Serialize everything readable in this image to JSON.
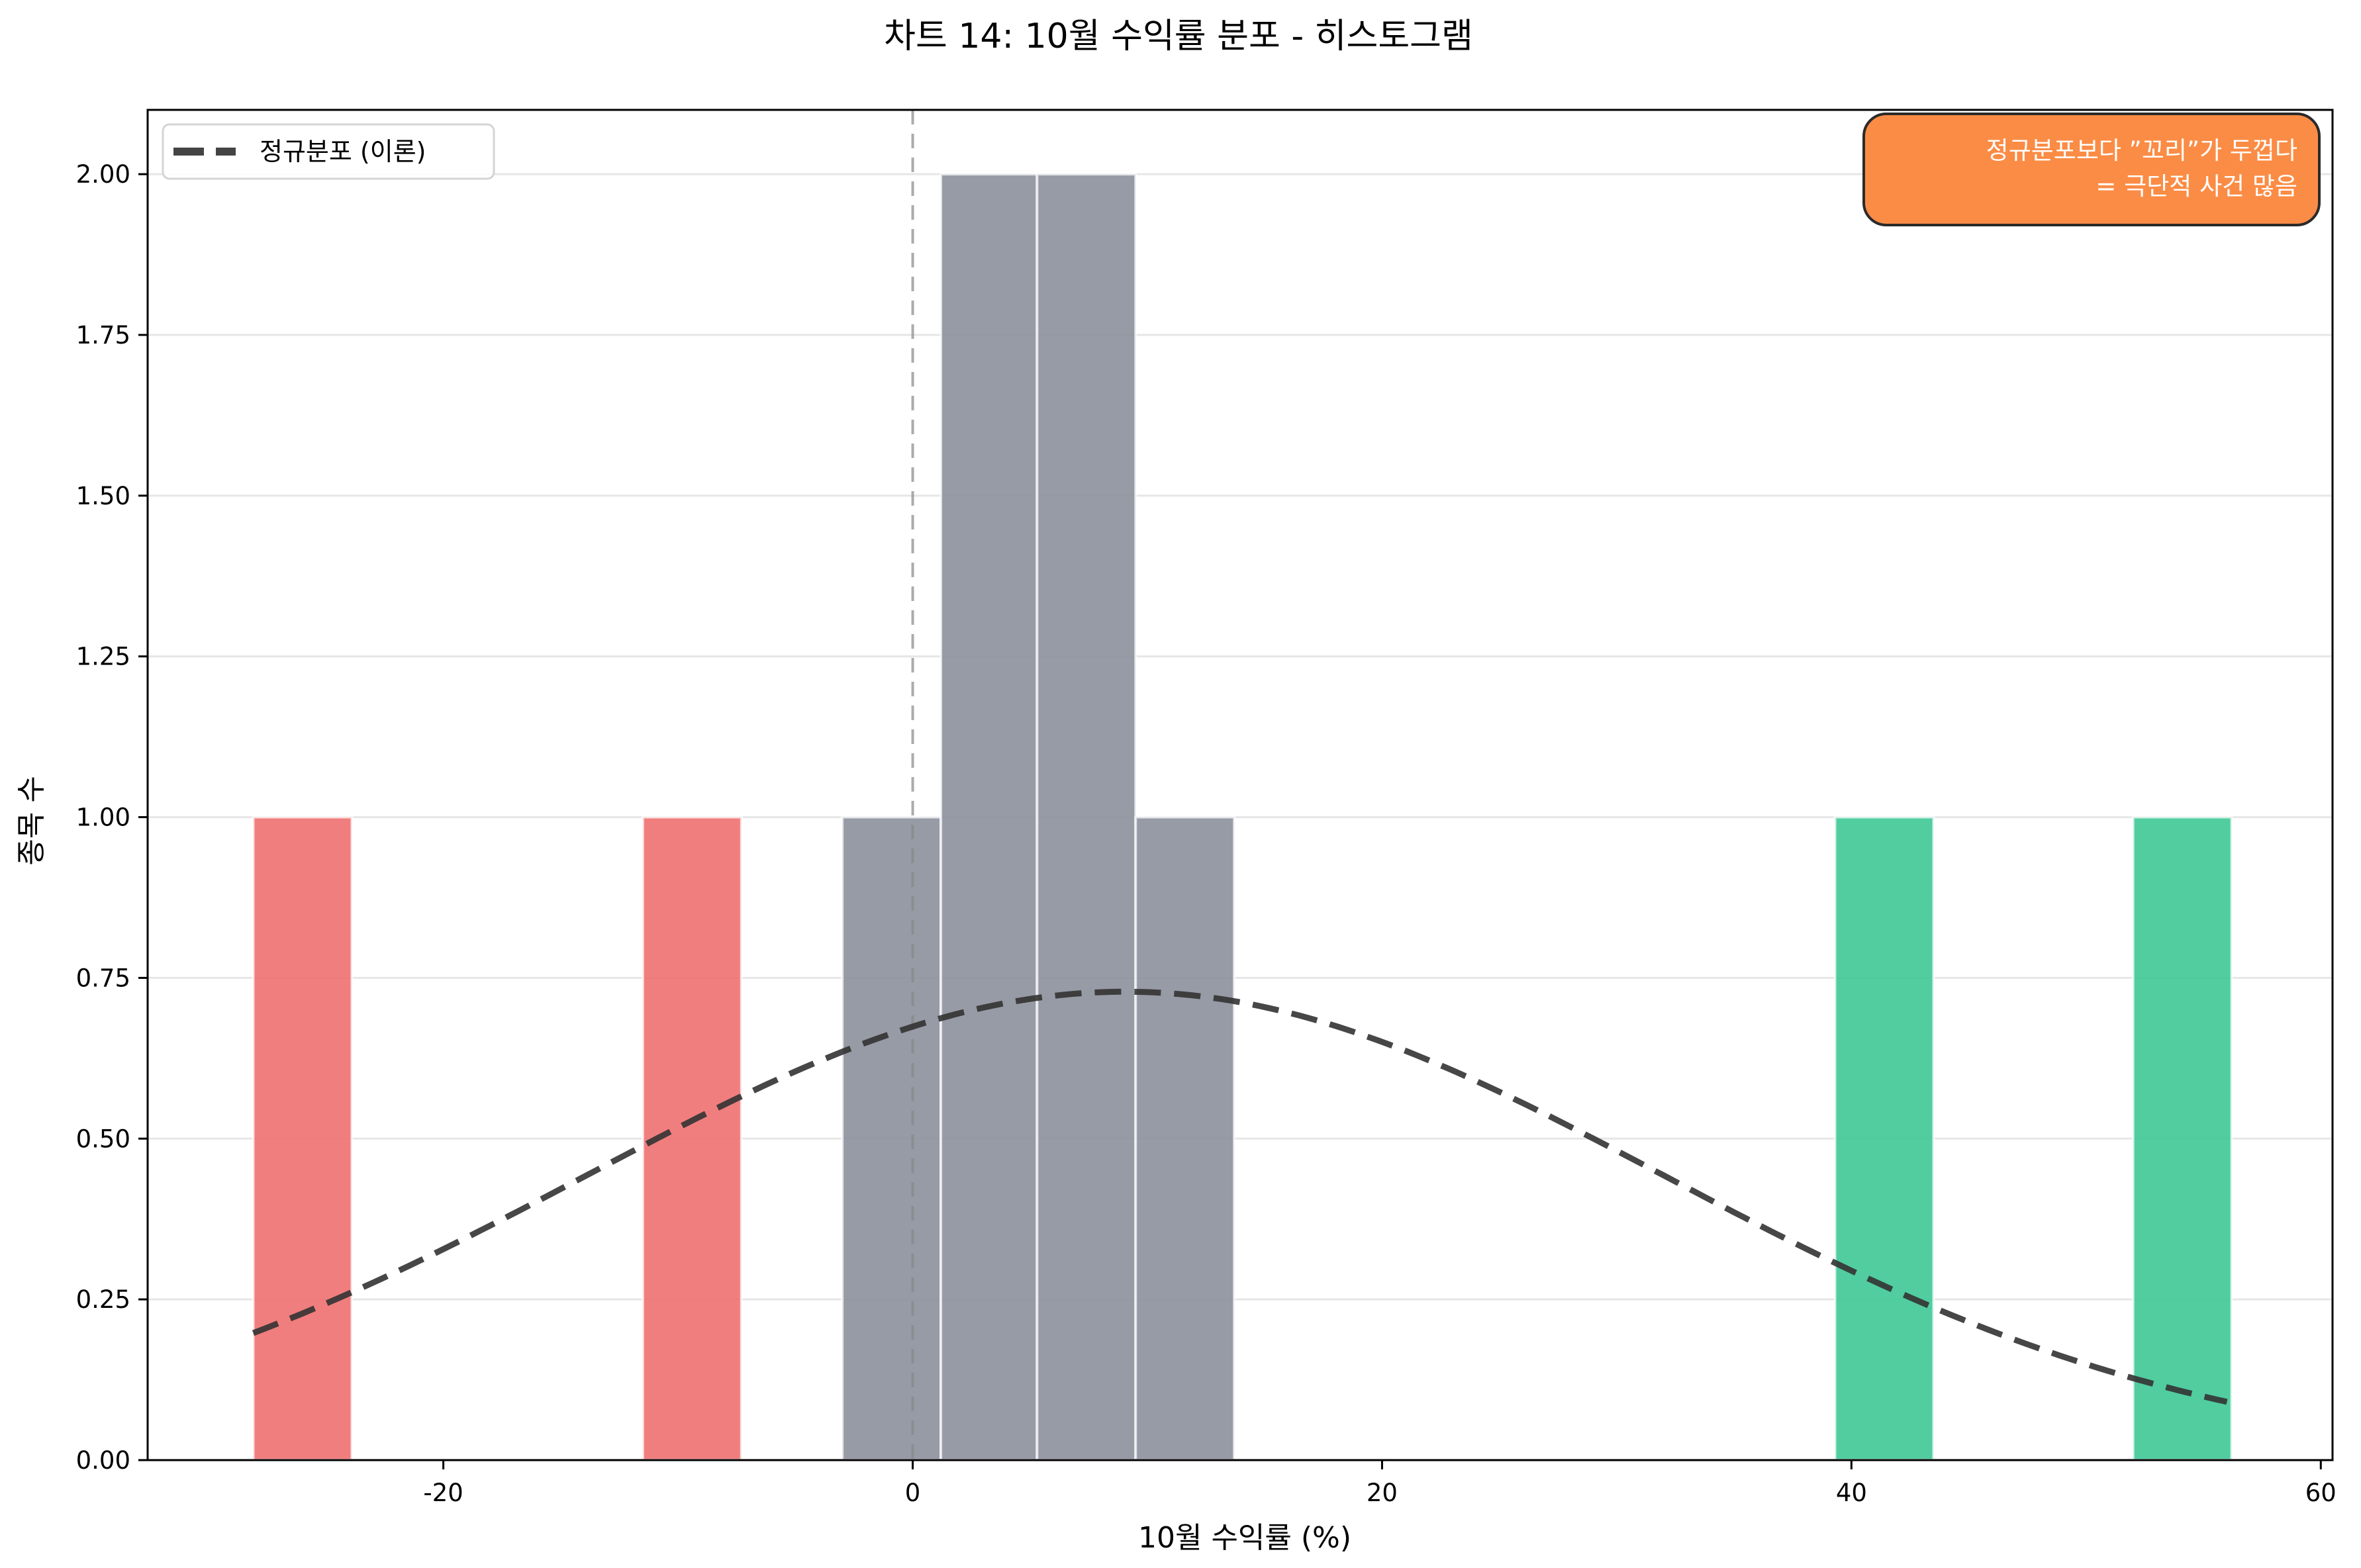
{
  "chart_data": {
    "type": "bar",
    "subtype": "histogram",
    "title": "차트 14: 10월 수익률 분포 - 히스토그램",
    "xlabel": "10월 수익률 (%)",
    "ylabel": "종목 수",
    "xlim": [
      -32.6,
      60.5
    ],
    "ylim": [
      0,
      2.1
    ],
    "xticks": [
      -20,
      0,
      20,
      40,
      60
    ],
    "xtick_labels": [
      "-20",
      "0",
      "20",
      "40",
      "60"
    ],
    "yticks": [
      0,
      0.25,
      0.5,
      0.75,
      1.0,
      1.25,
      1.5,
      1.75,
      2.0
    ],
    "ytick_labels": [
      "0.00",
      "0.25",
      "0.50",
      "0.75",
      "1.00",
      "1.25",
      "1.50",
      "1.75",
      "2.00"
    ],
    "grid": "y",
    "bin_width": 4.2,
    "bins": [
      {
        "x0": -28.1,
        "x1": -23.9,
        "count": 1,
        "color": "#f07070"
      },
      {
        "x0": -11.5,
        "x1": -7.3,
        "count": 1,
        "color": "#f07070"
      },
      {
        "x0": -3.0,
        "x1": 1.2,
        "count": 1,
        "color": "#8c909c"
      },
      {
        "x0": 1.2,
        "x1": 5.3,
        "count": 2,
        "color": "#8c909c"
      },
      {
        "x0": 5.3,
        "x1": 9.5,
        "count": 2,
        "color": "#8c909c"
      },
      {
        "x0": 9.5,
        "x1": 13.7,
        "count": 1,
        "color": "#8c909c"
      },
      {
        "x0": 39.3,
        "x1": 43.5,
        "count": 1,
        "color": "#3ec896"
      },
      {
        "x0": 52.0,
        "x1": 56.2,
        "count": 1,
        "color": "#3ec896"
      }
    ],
    "series": [
      {
        "name": "정규분포 (이론)",
        "type": "line",
        "style": "dashed",
        "color": "#333333",
        "mean": 9.05,
        "std": 23.0,
        "scale": 42.0,
        "x_range": [
          -28.1,
          56.0
        ],
        "peak": 0.73
      }
    ],
    "reference_lines": [
      {
        "orientation": "vertical",
        "x": 0,
        "style": "dashed",
        "color": "#888888"
      }
    ],
    "legend": {
      "position": "upper left",
      "entries": [
        "정규분포 (이론)"
      ]
    },
    "annotations": [
      {
        "text": "정규분포보다 \"꼬리\"가 두껍다\n= 극단적 사건 많음",
        "position": "upper right",
        "bg": "#fb8c45",
        "text_color": "#ffffff"
      }
    ]
  },
  "title": "차트 14: 10월 수익률 분포 - 히스토그램",
  "xlabel": "10월 수익률 (%)",
  "ylabel": "종목 수",
  "legend": {
    "label": "정규분포 (이론)"
  },
  "annotation": {
    "line1": "정규분포보다 ”꼬리”가 두껍다",
    "line2": "= 극단적 사건 많음"
  },
  "colors": {
    "loss": "#f07070",
    "neutral": "#8c909c",
    "gain": "#3ec896",
    "annotation_bg": "#fb8c45",
    "curve": "#333333"
  }
}
